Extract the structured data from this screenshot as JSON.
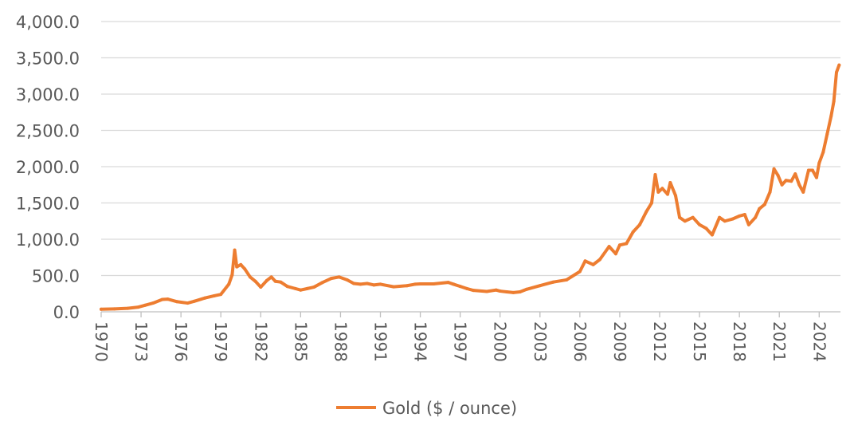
{
  "chart_data": {
    "type": "line",
    "title": "",
    "xlabel": "",
    "ylabel": "",
    "ylim": [
      0,
      4000
    ],
    "xlim": [
      1970,
      2025.6
    ],
    "y_ticks": [
      "0.0",
      "500.0",
      "1,000.0",
      "1,500.0",
      "2,000.0",
      "2,500.0",
      "3,000.0",
      "3,500.0",
      "4,000.0"
    ],
    "x_ticks": [
      "1970",
      "1973",
      "1976",
      "1979",
      "1982",
      "1985",
      "1988",
      "1991",
      "1994",
      "1997",
      "2000",
      "2003",
      "2006",
      "2009",
      "2012",
      "2015",
      "2018",
      "2021",
      "2024"
    ],
    "grid": "horizontal",
    "legend_position": "bottom",
    "series": [
      {
        "name": "Gold ($ / ounce)",
        "color": "#ED7D31",
        "x": [
          1970.0,
          1971.0,
          1972.0,
          1972.8,
          1973.3,
          1973.9,
          1974.6,
          1975.0,
          1975.7,
          1976.5,
          1977.0,
          1977.8,
          1978.5,
          1979.0,
          1979.6,
          1979.85,
          1980.04,
          1980.2,
          1980.5,
          1980.8,
          1981.2,
          1981.6,
          1982.0,
          1982.45,
          1982.8,
          1983.1,
          1983.5,
          1984.0,
          1984.6,
          1985.0,
          1985.5,
          1986.0,
          1986.6,
          1987.3,
          1987.9,
          1988.5,
          1989.0,
          1989.5,
          1990.0,
          1990.5,
          1991.0,
          1992.0,
          1993.0,
          1993.6,
          1994.0,
          1995.0,
          1996.1,
          1996.5,
          1997.0,
          1997.5,
          1998.0,
          1999.0,
          1999.7,
          2000.0,
          2000.5,
          2001.0,
          2001.5,
          2002.0,
          2003.0,
          2004.0,
          2005.0,
          2006.0,
          2006.4,
          2007.0,
          2007.5,
          2008.2,
          2008.7,
          2009.0,
          2009.5,
          2010.0,
          2010.5,
          2011.0,
          2011.4,
          2011.67,
          2011.9,
          2012.2,
          2012.6,
          2012.8,
          2013.2,
          2013.5,
          2013.9,
          2014.5,
          2015.0,
          2015.5,
          2015.95,
          2016.5,
          2016.9,
          2017.5,
          2018.0,
          2018.4,
          2018.7,
          2019.2,
          2019.5,
          2019.9,
          2020.3,
          2020.6,
          2020.9,
          2021.2,
          2021.5,
          2021.9,
          2022.2,
          2022.5,
          2022.8,
          2023.2,
          2023.5,
          2023.8,
          2024.0,
          2024.3,
          2024.6,
          2024.9,
          2025.1,
          2025.3,
          2025.5
        ],
        "values": [
          35,
          40,
          48,
          65,
          90,
          120,
          170,
          175,
          140,
          120,
          145,
          190,
          220,
          240,
          380,
          510,
          850,
          620,
          650,
          590,
          480,
          420,
          340,
          430,
          480,
          420,
          410,
          350,
          320,
          300,
          320,
          340,
          400,
          460,
          480,
          440,
          390,
          380,
          390,
          370,
          380,
          345,
          360,
          380,
          385,
          385,
          405,
          380,
          350,
          320,
          295,
          280,
          300,
          285,
          275,
          265,
          275,
          310,
          360,
          410,
          440,
          555,
          700,
          650,
          720,
          900,
          800,
          920,
          940,
          1100,
          1200,
          1380,
          1500,
          1890,
          1650,
          1700,
          1620,
          1780,
          1600,
          1300,
          1250,
          1300,
          1200,
          1150,
          1060,
          1300,
          1250,
          1280,
          1320,
          1340,
          1200,
          1300,
          1420,
          1480,
          1650,
          1970,
          1880,
          1750,
          1810,
          1800,
          1900,
          1750,
          1650,
          1950,
          1950,
          1850,
          2050,
          2200,
          2450,
          2700,
          2900,
          3300,
          3400
        ]
      }
    ]
  }
}
